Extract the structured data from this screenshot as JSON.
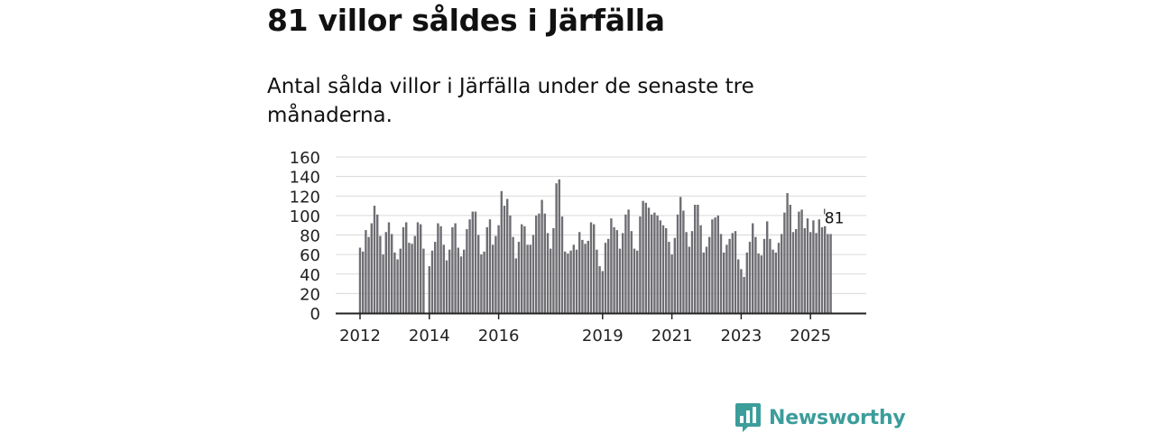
{
  "header": {
    "title": "81 villor såldes i Järfälla",
    "subtitle": "Antal sålda villor i Järfälla under de senaste tre månaderna."
  },
  "brand": {
    "name": "Newsworthy",
    "icon": "newsworthy-logo-icon"
  },
  "colors": {
    "bar": "#6f6e73",
    "highlight": "#27a3a0",
    "grid": "#d9d9d9",
    "axis": "#222222"
  },
  "chart_data": {
    "type": "bar",
    "title": "81 villor såldes i Järfälla",
    "xlabel": "",
    "ylabel": "",
    "ylim": [
      0,
      160
    ],
    "yticks": [
      "0",
      "20",
      "40",
      "60",
      "80",
      "100",
      "120",
      "140",
      "160"
    ],
    "xtick_labels": [
      {
        "label": "2012",
        "index": 0
      },
      {
        "label": "2014",
        "index": 24
      },
      {
        "label": "2016",
        "index": 48
      },
      {
        "label": "2019",
        "index": 84
      },
      {
        "label": "2021",
        "index": 108
      },
      {
        "label": "2023",
        "index": 132
      },
      {
        "label": "2025",
        "index": 156
      }
    ],
    "start": "2012-01",
    "values": [
      67,
      63,
      85,
      78,
      92,
      110,
      101,
      79,
      60,
      83,
      93,
      81,
      62,
      55,
      66,
      88,
      93,
      72,
      71,
      79,
      93,
      91,
      66,
      0,
      48,
      64,
      73,
      92,
      89,
      70,
      54,
      65,
      88,
      92,
      67,
      58,
      65,
      86,
      96,
      104,
      104,
      80,
      60,
      63,
      88,
      96,
      70,
      79,
      90,
      125,
      110,
      117,
      100,
      78,
      56,
      73,
      91,
      89,
      70,
      70,
      80,
      100,
      102,
      116,
      102,
      82,
      66,
      87,
      133,
      137,
      99,
      63,
      61,
      64,
      70,
      65,
      83,
      75,
      71,
      74,
      93,
      91,
      65,
      48,
      43,
      72,
      76,
      97,
      88,
      85,
      66,
      82,
      101,
      106,
      84,
      66,
      64,
      99,
      115,
      113,
      108,
      101,
      103,
      100,
      95,
      90,
      87,
      73,
      60,
      77,
      101,
      119,
      105,
      83,
      68,
      84,
      111,
      111,
      90,
      62,
      68,
      78,
      96,
      98,
      100,
      81,
      62,
      70,
      76,
      82,
      84,
      55,
      45,
      37,
      62,
      73,
      92,
      78,
      61,
      59,
      76,
      94,
      76,
      65,
      62,
      72,
      81,
      103,
      123,
      111,
      83,
      86,
      104,
      106,
      87,
      97,
      83,
      95,
      82,
      96,
      88,
      89,
      81,
      81
    ],
    "highlight_index": 164,
    "annotation": {
      "label": "81",
      "index": 164,
      "value": 81
    }
  }
}
